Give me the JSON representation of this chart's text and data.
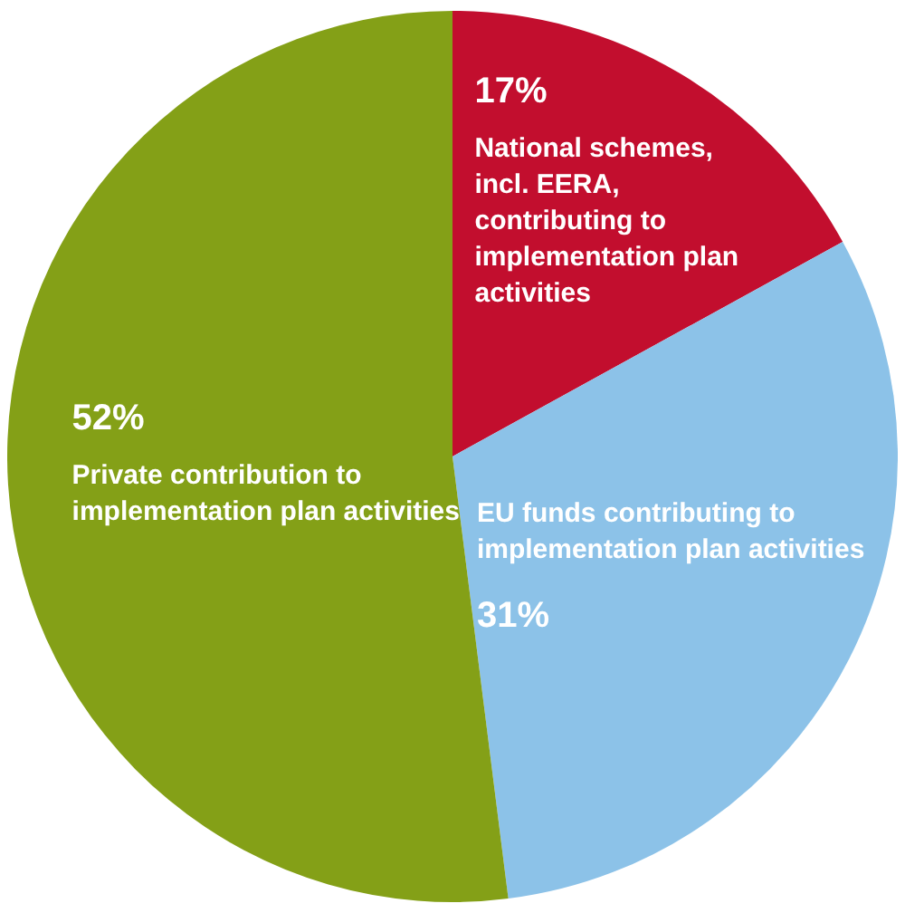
{
  "chart_data": {
    "type": "pie",
    "categories": [
      "National schemes, incl. EERA, contributing to implementation plan activities",
      "EU funds contributing to implementation plan activities",
      "Private contribution to implementation plan activities"
    ],
    "values": [
      17,
      31,
      52
    ],
    "colors": [
      "#c20e2e",
      "#8cc2e8",
      "#84a017"
    ],
    "value_labels": [
      "17%",
      "31%",
      "52%"
    ],
    "legend": false
  }
}
